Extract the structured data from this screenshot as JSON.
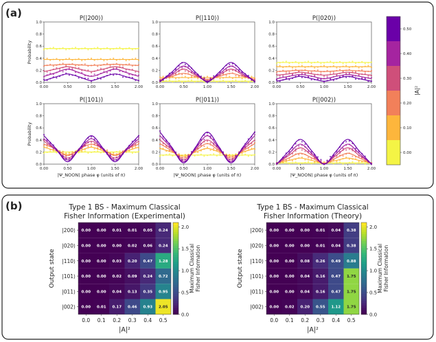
{
  "panel_a": {
    "label": "(a)"
  },
  "panel_b": {
    "label": "(b)"
  },
  "colorbar": {
    "label": "|A|²",
    "ticks": [
      "0.00",
      "0.10",
      "0.20",
      "0.30",
      "0.40",
      "0.50"
    ],
    "colors": [
      "#f4f445",
      "#fdb63c",
      "#f2805a",
      "#cf4f7a",
      "#a524a0",
      "#6a00a8"
    ]
  },
  "colorbar_fisher": {
    "label": "Maximum Classical Fisher Information",
    "ticks": [
      "0.0",
      "0.5",
      "1.0",
      "1.5",
      "2.0"
    ]
  },
  "chart_data": [
    {
      "type": "line",
      "title": "P(|200⟩)",
      "ylabel": "Probability",
      "xlabel": "",
      "xlim": [
        0,
        2
      ],
      "ylim": [
        0,
        1
      ],
      "x_ticks": [
        "0.00",
        "0.50",
        "1.00",
        "1.50",
        "2.00"
      ],
      "y_ticks": [
        "0.0",
        "0.2",
        "0.4",
        "0.6",
        "0.8",
        "1.0"
      ],
      "series": [
        {
          "A2": 0.0,
          "values": [
            0.56,
            0.56,
            0.56,
            0.56,
            0.56,
            0.56,
            0.56,
            0.56,
            0.56
          ]
        },
        {
          "A2": 0.1,
          "values": [
            0.38,
            0.38,
            0.38,
            0.38,
            0.38,
            0.38,
            0.38,
            0.38,
            0.38
          ]
        },
        {
          "A2": 0.2,
          "values": [
            0.28,
            0.29,
            0.3,
            0.29,
            0.28,
            0.29,
            0.3,
            0.29,
            0.28
          ]
        },
        {
          "A2": 0.3,
          "values": [
            0.18,
            0.22,
            0.26,
            0.22,
            0.18,
            0.22,
            0.26,
            0.22,
            0.18
          ]
        },
        {
          "A2": 0.4,
          "values": [
            0.1,
            0.16,
            0.22,
            0.16,
            0.1,
            0.16,
            0.22,
            0.16,
            0.1
          ]
        },
        {
          "A2": 0.5,
          "values": [
            0.03,
            0.09,
            0.14,
            0.09,
            0.03,
            0.09,
            0.14,
            0.09,
            0.03
          ]
        }
      ]
    },
    {
      "type": "line",
      "title": "P(|110⟩)",
      "ylabel": "",
      "xlabel": "",
      "xlim": [
        0,
        2
      ],
      "ylim": [
        0,
        1
      ],
      "x_ticks": [
        "0.00",
        "0.50",
        "1.00",
        "1.50",
        "2.00"
      ],
      "y_ticks": [
        "0.0",
        "0.2",
        "0.4",
        "0.6",
        "0.8",
        "1.0"
      ],
      "series": [
        {
          "A2": 0.0,
          "values": [
            0.02,
            0.02,
            0.02,
            0.02,
            0.02,
            0.02,
            0.02,
            0.02,
            0.02
          ]
        },
        {
          "A2": 0.1,
          "values": [
            0.08,
            0.08,
            0.08,
            0.08,
            0.08,
            0.08,
            0.08,
            0.08,
            0.08
          ]
        },
        {
          "A2": 0.2,
          "values": [
            0.05,
            0.1,
            0.15,
            0.1,
            0.05,
            0.1,
            0.15,
            0.1,
            0.05
          ]
        },
        {
          "A2": 0.3,
          "values": [
            0.03,
            0.12,
            0.22,
            0.12,
            0.03,
            0.12,
            0.22,
            0.12,
            0.03
          ]
        },
        {
          "A2": 0.4,
          "values": [
            0.02,
            0.14,
            0.27,
            0.14,
            0.02,
            0.14,
            0.27,
            0.14,
            0.02
          ]
        },
        {
          "A2": 0.5,
          "values": [
            0.01,
            0.17,
            0.33,
            0.17,
            0.01,
            0.17,
            0.33,
            0.17,
            0.01
          ]
        }
      ]
    },
    {
      "type": "line",
      "title": "P(|020⟩)",
      "ylabel": "",
      "xlabel": "",
      "xlim": [
        0,
        2
      ],
      "ylim": [
        0,
        1
      ],
      "x_ticks": [
        "0.00",
        "0.50",
        "1.00",
        "1.50",
        "2.00"
      ],
      "y_ticks": [
        "0.0",
        "0.2",
        "0.4",
        "0.6",
        "0.8",
        "1.0"
      ],
      "series": [
        {
          "A2": 0.0,
          "values": [
            0.33,
            0.33,
            0.33,
            0.33,
            0.33,
            0.33,
            0.33,
            0.33,
            0.33
          ]
        },
        {
          "A2": 0.1,
          "values": [
            0.26,
            0.26,
            0.26,
            0.26,
            0.26,
            0.26,
            0.26,
            0.26,
            0.26
          ]
        },
        {
          "A2": 0.2,
          "values": [
            0.18,
            0.19,
            0.2,
            0.19,
            0.18,
            0.19,
            0.2,
            0.19,
            0.18
          ]
        },
        {
          "A2": 0.3,
          "values": [
            0.12,
            0.14,
            0.17,
            0.14,
            0.12,
            0.14,
            0.17,
            0.14,
            0.12
          ]
        },
        {
          "A2": 0.4,
          "values": [
            0.06,
            0.1,
            0.13,
            0.1,
            0.06,
            0.1,
            0.13,
            0.1,
            0.06
          ]
        },
        {
          "A2": 0.5,
          "values": [
            0.02,
            0.06,
            0.1,
            0.06,
            0.02,
            0.06,
            0.1,
            0.06,
            0.02
          ]
        }
      ]
    },
    {
      "type": "line",
      "title": "P(|101⟩)",
      "ylabel": "Probability",
      "xlabel": "|Ψ_NOON⟩ phase φ (units of π)",
      "xlim": [
        0,
        2
      ],
      "ylim": [
        0,
        1
      ],
      "x_ticks": [
        "0.00",
        "0.50",
        "1.00",
        "1.50",
        "2.00"
      ],
      "y_ticks": [
        "0.0",
        "0.2",
        "0.4",
        "0.6",
        "0.8",
        "1.0"
      ],
      "series": [
        {
          "A2": 0.0,
          "values": [
            0.2,
            0.2,
            0.2,
            0.2,
            0.2,
            0.2,
            0.2,
            0.2,
            0.2
          ]
        },
        {
          "A2": 0.1,
          "values": [
            0.28,
            0.22,
            0.16,
            0.22,
            0.28,
            0.22,
            0.16,
            0.22,
            0.28
          ]
        },
        {
          "A2": 0.2,
          "values": [
            0.33,
            0.25,
            0.14,
            0.25,
            0.33,
            0.25,
            0.14,
            0.25,
            0.33
          ]
        },
        {
          "A2": 0.3,
          "values": [
            0.38,
            0.24,
            0.1,
            0.24,
            0.38,
            0.24,
            0.1,
            0.24,
            0.38
          ]
        },
        {
          "A2": 0.4,
          "values": [
            0.42,
            0.24,
            0.07,
            0.24,
            0.42,
            0.24,
            0.07,
            0.24,
            0.42
          ]
        },
        {
          "A2": 0.5,
          "values": [
            0.47,
            0.26,
            0.04,
            0.26,
            0.47,
            0.26,
            0.04,
            0.26,
            0.47
          ]
        }
      ]
    },
    {
      "type": "line",
      "title": "P(|011⟩)",
      "ylabel": "",
      "xlabel": "|Ψ_NOON⟩ phase φ (units of π)",
      "xlim": [
        0,
        2
      ],
      "ylim": [
        0,
        1
      ],
      "x_ticks": [
        "0.00",
        "0.50",
        "1.00",
        "1.50",
        "2.00"
      ],
      "y_ticks": [
        "0.0",
        "0.2",
        "0.4",
        "0.6",
        "0.8",
        "1.0"
      ],
      "series": [
        {
          "A2": 0.0,
          "values": [
            0.15,
            0.15,
            0.15,
            0.15,
            0.15,
            0.15,
            0.15,
            0.15,
            0.15
          ]
        },
        {
          "A2": 0.1,
          "values": [
            0.26,
            0.2,
            0.13,
            0.2,
            0.26,
            0.2,
            0.13,
            0.2,
            0.26
          ]
        },
        {
          "A2": 0.2,
          "values": [
            0.34,
            0.22,
            0.1,
            0.22,
            0.34,
            0.22,
            0.1,
            0.22,
            0.34
          ]
        },
        {
          "A2": 0.3,
          "values": [
            0.4,
            0.24,
            0.07,
            0.24,
            0.4,
            0.24,
            0.07,
            0.24,
            0.4
          ]
        },
        {
          "A2": 0.4,
          "values": [
            0.47,
            0.26,
            0.04,
            0.26,
            0.47,
            0.26,
            0.04,
            0.26,
            0.47
          ]
        },
        {
          "A2": 0.5,
          "values": [
            0.53,
            0.28,
            0.02,
            0.28,
            0.53,
            0.28,
            0.02,
            0.28,
            0.53
          ]
        }
      ]
    },
    {
      "type": "line",
      "title": "P(|002⟩)",
      "ylabel": "",
      "xlabel": "|Ψ_NOON⟩ phase φ (units of π)",
      "xlim": [
        0,
        2
      ],
      "ylim": [
        0,
        1
      ],
      "x_ticks": [
        "0.00",
        "0.50",
        "1.00",
        "1.50",
        "2.00"
      ],
      "y_ticks": [
        "0.0",
        "0.2",
        "0.4",
        "0.6",
        "0.8",
        "1.0"
      ],
      "series": [
        {
          "A2": 0.0,
          "values": [
            0.02,
            0.02,
            0.02,
            0.02,
            0.02,
            0.02,
            0.02,
            0.02,
            0.02
          ]
        },
        {
          "A2": 0.1,
          "values": [
            0.02,
            0.06,
            0.1,
            0.06,
            0.02,
            0.06,
            0.1,
            0.06,
            0.02
          ]
        },
        {
          "A2": 0.2,
          "values": [
            0.01,
            0.1,
            0.18,
            0.1,
            0.01,
            0.1,
            0.18,
            0.1,
            0.01
          ]
        },
        {
          "A2": 0.3,
          "values": [
            0.01,
            0.14,
            0.27,
            0.14,
            0.01,
            0.14,
            0.27,
            0.14,
            0.01
          ]
        },
        {
          "A2": 0.4,
          "values": [
            0.0,
            0.17,
            0.33,
            0.17,
            0.0,
            0.17,
            0.33,
            0.17,
            0.0
          ]
        },
        {
          "A2": 0.5,
          "values": [
            0.0,
            0.21,
            0.41,
            0.21,
            0.0,
            0.21,
            0.41,
            0.21,
            0.0
          ]
        }
      ]
    },
    {
      "type": "heatmap",
      "title": "Type 1 BS - Maximum Classical Fisher Information (Experimental)",
      "title_lines": [
        "Type 1 BS - Maximum Classical",
        "Fisher Information (Experimental)"
      ],
      "xlabel": "|A|²",
      "ylabel": "Output state",
      "zlim": [
        0,
        2.1
      ],
      "x": [
        "0.0",
        "0.1",
        "0.2",
        "0.3",
        "0.4",
        "0.5"
      ],
      "y": [
        "|200⟩",
        "|020⟩",
        "|110⟩",
        "|101⟩",
        "|011⟩",
        "|002⟩"
      ],
      "values": [
        [
          0.0,
          0.0,
          0.01,
          0.01,
          0.05,
          0.24
        ],
        [
          0.0,
          0.0,
          0.0,
          0.02,
          0.06,
          0.24
        ],
        [
          0.0,
          0.0,
          0.03,
          0.2,
          0.47,
          1.28
        ],
        [
          0.0,
          0.0,
          0.02,
          0.09,
          0.24,
          0.72
        ],
        [
          0.0,
          0.0,
          0.04,
          0.13,
          0.35,
          0.95
        ],
        [
          0.0,
          0.01,
          0.17,
          0.46,
          0.93,
          2.05
        ]
      ]
    },
    {
      "type": "heatmap",
      "title": "Type 1 BS - Maximum Classical Fisher Information (Theory)",
      "title_lines": [
        "Type 1 BS - Maximum Classical",
        "Fisher Information (Theory)"
      ],
      "xlabel": "|A|²",
      "ylabel": "Output state",
      "zlim": [
        0,
        2.1
      ],
      "x": [
        "0.0",
        "0.1",
        "0.2",
        "0.3",
        "0.4",
        "0.5"
      ],
      "y": [
        "|200⟩",
        "|020⟩",
        "|110⟩",
        "|101⟩",
        "|011⟩",
        "|002⟩"
      ],
      "values": [
        [
          0.0,
          0.0,
          0.0,
          0.01,
          0.04,
          0.38
        ],
        [
          0.0,
          0.0,
          0.0,
          0.01,
          0.04,
          0.38
        ],
        [
          0.0,
          0.0,
          0.08,
          0.26,
          0.49,
          0.88
        ],
        [
          0.0,
          0.0,
          0.04,
          0.16,
          0.47,
          1.75
        ],
        [
          0.0,
          0.0,
          0.04,
          0.16,
          0.47,
          1.75
        ],
        [
          0.0,
          0.02,
          0.2,
          0.55,
          1.12,
          1.75
        ]
      ]
    }
  ]
}
